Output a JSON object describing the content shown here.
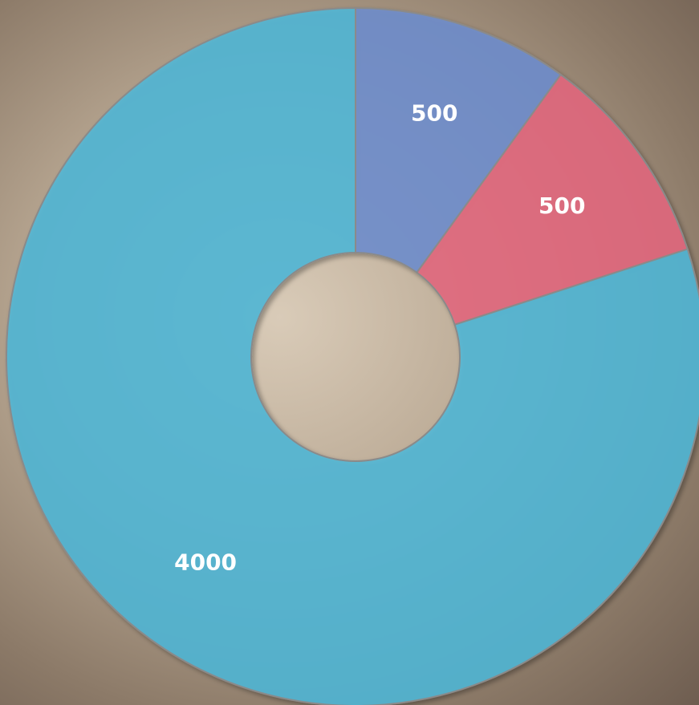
{
  "chart_data": {
    "type": "doughnut",
    "values": [
      500,
      500,
      4000
    ],
    "colors": [
      "#6f8ed0",
      "#e5687f",
      "#4fb9d9"
    ]
  }
}
